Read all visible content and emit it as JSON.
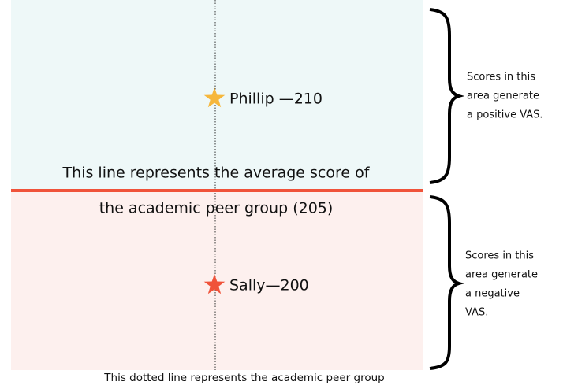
{
  "upper_region": {
    "marker": "Phillip —210",
    "note": [
      "Scores in this",
      "area generate",
      "a positive VAS."
    ]
  },
  "average_line": {
    "label": [
      "This line represents the average score of",
      "the academic peer group (205)"
    ]
  },
  "lower_region": {
    "marker": "Sally—200",
    "note": [
      "Scores in this",
      "area generate",
      "a negative",
      "VAS."
    ]
  },
  "dotted_line": {
    "label": "This dotted line represents the academic peer group"
  }
}
